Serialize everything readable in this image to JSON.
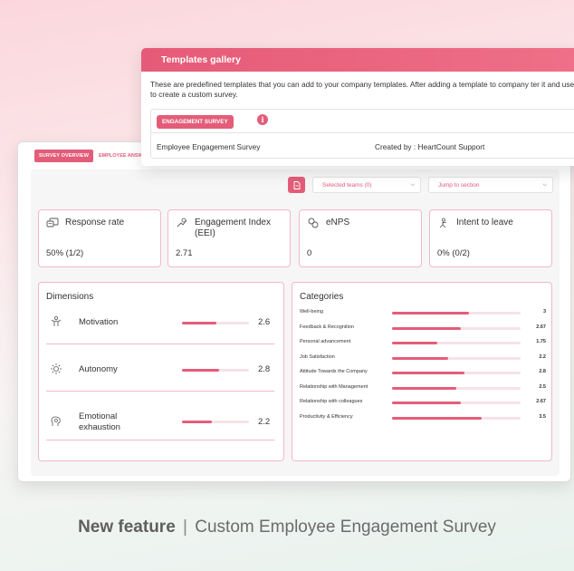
{
  "dashboard": {
    "tabs": [
      "SURVEY OVERVIEW",
      "EMPLOYEE ANSW"
    ],
    "filters": {
      "teams": "Selected teams (0)",
      "section": "Jump to section"
    },
    "metrics": [
      {
        "title_lines": [
          "Response rate"
        ],
        "value": "50% (1/2)",
        "icon": "response-rate-icon"
      },
      {
        "title_lines": [
          "Engagement Index",
          "(EEI)"
        ],
        "value": "2.71",
        "icon": "engagement-index-icon"
      },
      {
        "title_lines": [
          "eNPS"
        ],
        "value": "0",
        "icon": "enps-icon"
      },
      {
        "title_lines": [
          "Intent to leave"
        ],
        "value": "0% (0/2)",
        "icon": "intent-to-leave-icon"
      }
    ],
    "dimensions": {
      "title": "Dimensions",
      "items": [
        {
          "label": "Motivation",
          "value": "2.6",
          "score": 2.6,
          "icon": "motivation-icon"
        },
        {
          "label": "Autonomy",
          "value": "2.8",
          "score": 2.8,
          "icon": "autonomy-icon"
        },
        {
          "label": "Emotional exhaustion",
          "value": "2.2",
          "score": 2.2,
          "icon": "emotional-exhaustion-icon"
        }
      ]
    },
    "categories": {
      "title": "Categories",
      "items": [
        {
          "label": "Well-being",
          "value": "3",
          "score": 3
        },
        {
          "label": "Feedback & Recognition",
          "value": "2.67",
          "score": 2.67
        },
        {
          "label": "Personal advancement",
          "value": "1.75",
          "score": 1.75
        },
        {
          "label": "Job Satisfaction",
          "value": "2.2",
          "score": 2.2
        },
        {
          "label": "Attitude Towards the Company",
          "value": "2.8",
          "score": 2.8
        },
        {
          "label": "Relationship with Management",
          "value": "2.5",
          "score": 2.5
        },
        {
          "label": "Relationship with colleagues",
          "value": "2.67",
          "score": 2.67
        },
        {
          "label": "Productivity & Efficiency",
          "value": "3.5",
          "score": 3.5
        }
      ]
    }
  },
  "gallery": {
    "title": "Templates gallery",
    "description": "These are predefined templates that you can add to your company templates. After adding a template to company ter it and use it to create a custom survey.",
    "badge": "ENGAGEMENT SURVEY",
    "survey_name": "Employee Engagement Survey",
    "created_by": "Created by : HeartCount Support"
  },
  "caption": {
    "bold": "New feature",
    "separator": "|",
    "text": "Custom Employee Engagement Survey"
  },
  "colors": {
    "accent": "#e35d79",
    "bar_track": "#f6e3e7",
    "card_border": "#f0b9c4"
  }
}
